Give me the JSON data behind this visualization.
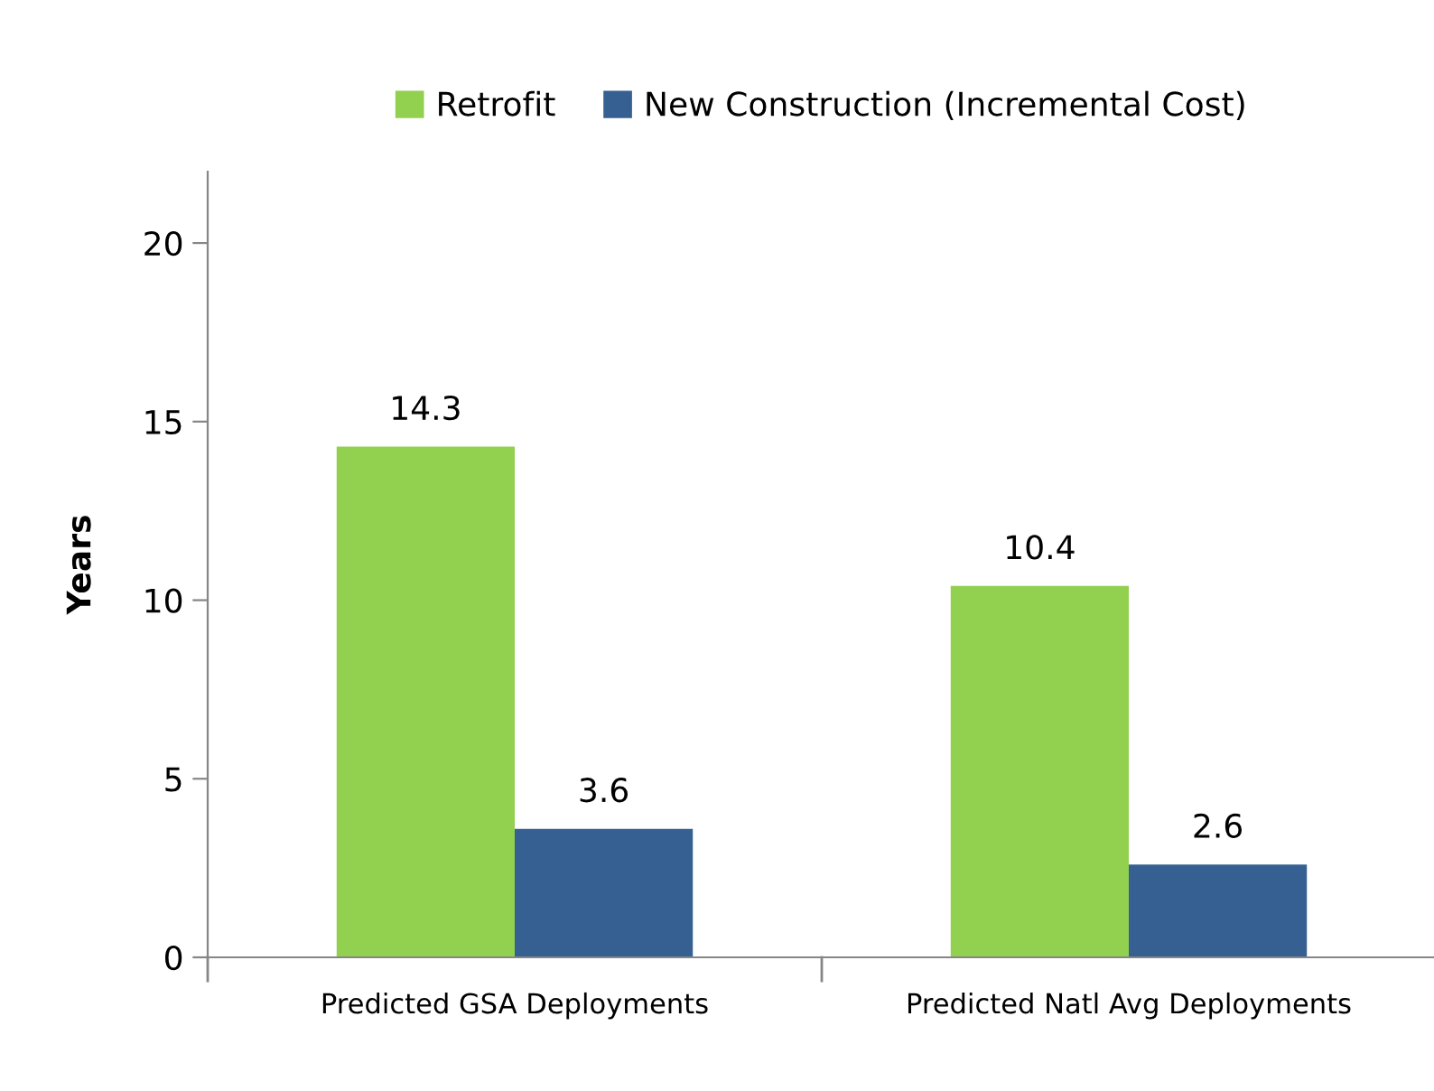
{
  "chart_data": {
    "type": "bar",
    "ylabel": "Years",
    "categories": [
      "Predicted GSA Deployments",
      "Predicted Natl Avg Deployments"
    ],
    "series": [
      {
        "name": "Retrofit",
        "color": "#92d050",
        "values": [
          14.3,
          10.4
        ]
      },
      {
        "name": "New Construction (Incremental Cost)",
        "color": "#366092",
        "values": [
          3.6,
          2.6
        ]
      }
    ],
    "ylim": [
      0,
      22
    ],
    "yticks": [
      0,
      5,
      10,
      15,
      20
    ],
    "grid": false,
    "legend": "top",
    "data_labels": true
  }
}
